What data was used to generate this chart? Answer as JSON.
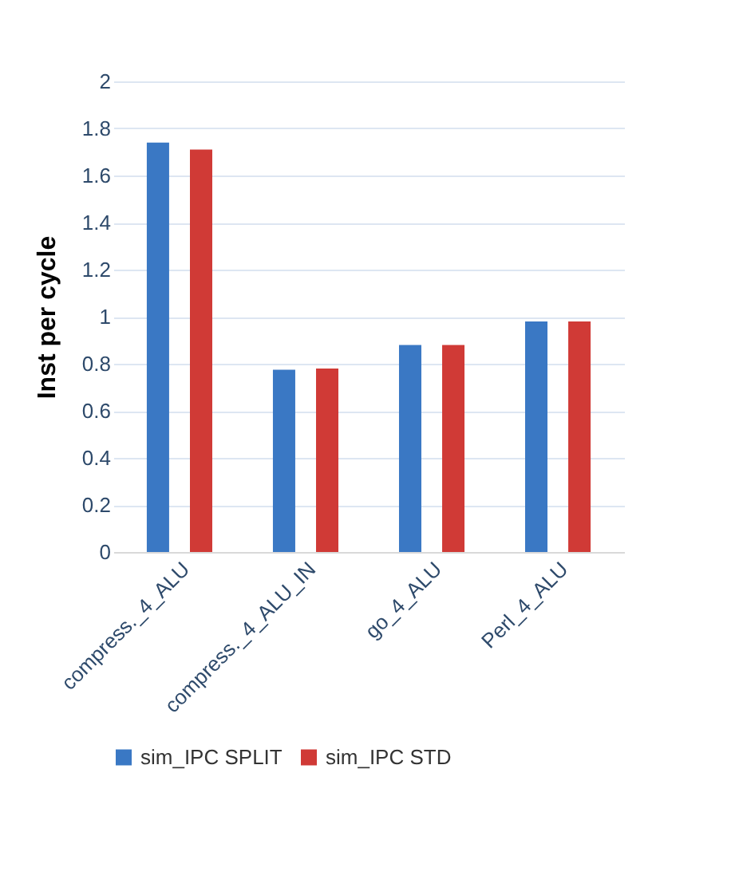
{
  "chart_data": {
    "type": "bar",
    "ylabel": "Inst  per cycle",
    "categories": [
      "compress._4_ALU",
      "compress._4_ALU_IN",
      "go_4_ALU",
      "Perl_4_ALU"
    ],
    "series": [
      {
        "name": "sim_IPC SPLIT",
        "color": "#3a78c4",
        "values": [
          1.74,
          0.775,
          0.88,
          0.98
        ]
      },
      {
        "name": "sim_IPC STD",
        "color": "#d03a36",
        "values": [
          1.71,
          0.78,
          0.88,
          0.98
        ]
      }
    ],
    "ylim": [
      0,
      2
    ],
    "yticks": [
      0,
      0.2,
      0.4,
      0.6,
      0.8,
      1,
      1.2,
      1.4,
      1.6,
      1.8,
      2
    ],
    "grid": "y",
    "legend": "bottom"
  }
}
